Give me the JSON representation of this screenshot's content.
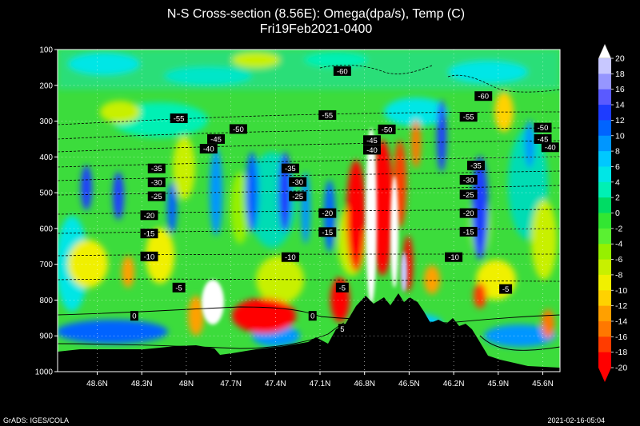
{
  "header": {
    "title": "N-S Cross-section (8.56E): Omega(dpa/s), Temp (C)",
    "subtitle": "Fri19Feb2021-0400"
  },
  "footer": {
    "credit": "GrADS: IGES/COLA",
    "timestamp": "2021-02-16-05:04"
  },
  "chart_data": {
    "type": "heatmap",
    "title": "N-S Cross-section (8.56E): Omega(dpa/s), Temp (C)",
    "subtitle": "Fri19Feb2021-0400",
    "x_ticks": [
      "48.6N",
      "48.3N",
      "48N",
      "47.7N",
      "47.4N",
      "47.1N",
      "46.8N",
      "46.5N",
      "46.2N",
      "45.9N",
      "45.6N"
    ],
    "y_ticks": [
      100,
      200,
      300,
      400,
      500,
      600,
      700,
      800,
      900,
      1000
    ],
    "ylim": [
      100,
      1000
    ],
    "y_reversed": true,
    "colorbar": {
      "levels": [
        20,
        18,
        16,
        14,
        12,
        10,
        8,
        6,
        4,
        2,
        0,
        -2,
        -4,
        -6,
        -8,
        -10,
        -12,
        -14,
        -16,
        -18,
        -20
      ],
      "colors": [
        "#ffffff",
        "#c8c8ff",
        "#9696ff",
        "#5a5aff",
        "#1e3cff",
        "#0064ff",
        "#0096ff",
        "#00c8ff",
        "#00e6e6",
        "#00f0b4",
        "#00dc64",
        "#32e632",
        "#5af032",
        "#96f000",
        "#c8f000",
        "#f0f000",
        "#ffd200",
        "#ffa000",
        "#ff7800",
        "#ff3c00",
        "#ff0000"
      ]
    },
    "temperature_labels": [
      {
        "label": "-60",
        "lat": "46.95N",
        "p": 160
      },
      {
        "label": "-60",
        "lat": "46.0N",
        "p": 230
      },
      {
        "label": "-55",
        "lat": "48.05N",
        "p": 292
      },
      {
        "label": "-55",
        "lat": "47.05N",
        "p": 283
      },
      {
        "label": "-55",
        "lat": "46.1N",
        "p": 288
      },
      {
        "label": "-50",
        "lat": "47.65N",
        "p": 322
      },
      {
        "label": "-50",
        "lat": "46.65N",
        "p": 323
      },
      {
        "label": "-50",
        "lat": "45.6N",
        "p": 318
      },
      {
        "label": "-45",
        "lat": "47.8N",
        "p": 350
      },
      {
        "label": "-45",
        "lat": "46.75N",
        "p": 353
      },
      {
        "label": "-45",
        "lat": "45.6N",
        "p": 350
      },
      {
        "label": "-40",
        "lat": "47.85N",
        "p": 377
      },
      {
        "label": "-40",
        "lat": "46.75N",
        "p": 380
      },
      {
        "label": "-40",
        "lat": "45.55N",
        "p": 373
      },
      {
        "label": "-35",
        "lat": "48.2N",
        "p": 432
      },
      {
        "label": "-35",
        "lat": "47.3N",
        "p": 432
      },
      {
        "label": "-35",
        "lat": "46.05N",
        "p": 424
      },
      {
        "label": "-30",
        "lat": "48.2N",
        "p": 471
      },
      {
        "label": "-30",
        "lat": "47.25N",
        "p": 470
      },
      {
        "label": "-30",
        "lat": "46.1N",
        "p": 464
      },
      {
        "label": "-25",
        "lat": "48.2N",
        "p": 510
      },
      {
        "label": "-25",
        "lat": "47.25N",
        "p": 510
      },
      {
        "label": "-25",
        "lat": "46.1N",
        "p": 505
      },
      {
        "label": "-20",
        "lat": "48.25N",
        "p": 563
      },
      {
        "label": "-20",
        "lat": "47.05N",
        "p": 557
      },
      {
        "label": "-20",
        "lat": "46.1N",
        "p": 557
      },
      {
        "label": "-15",
        "lat": "48.25N",
        "p": 614
      },
      {
        "label": "-15",
        "lat": "47.05N",
        "p": 610
      },
      {
        "label": "-15",
        "lat": "46.1N",
        "p": 609
      },
      {
        "label": "-10",
        "lat": "48.25N",
        "p": 678
      },
      {
        "label": "-10",
        "lat": "47.3N",
        "p": 680
      },
      {
        "label": "-10",
        "lat": "46.2N",
        "p": 680
      },
      {
        "label": "-5",
        "lat": "48.05N",
        "p": 765
      },
      {
        "label": "-5",
        "lat": "46.95N",
        "p": 765
      },
      {
        "label": "-5",
        "lat": "45.85N",
        "p": 769
      },
      {
        "label": "0",
        "lat": "48.35N",
        "p": 844
      },
      {
        "label": "0",
        "lat": "47.15N",
        "p": 844
      },
      {
        "label": "5",
        "lat": "46.95N",
        "p": 880
      }
    ]
  }
}
